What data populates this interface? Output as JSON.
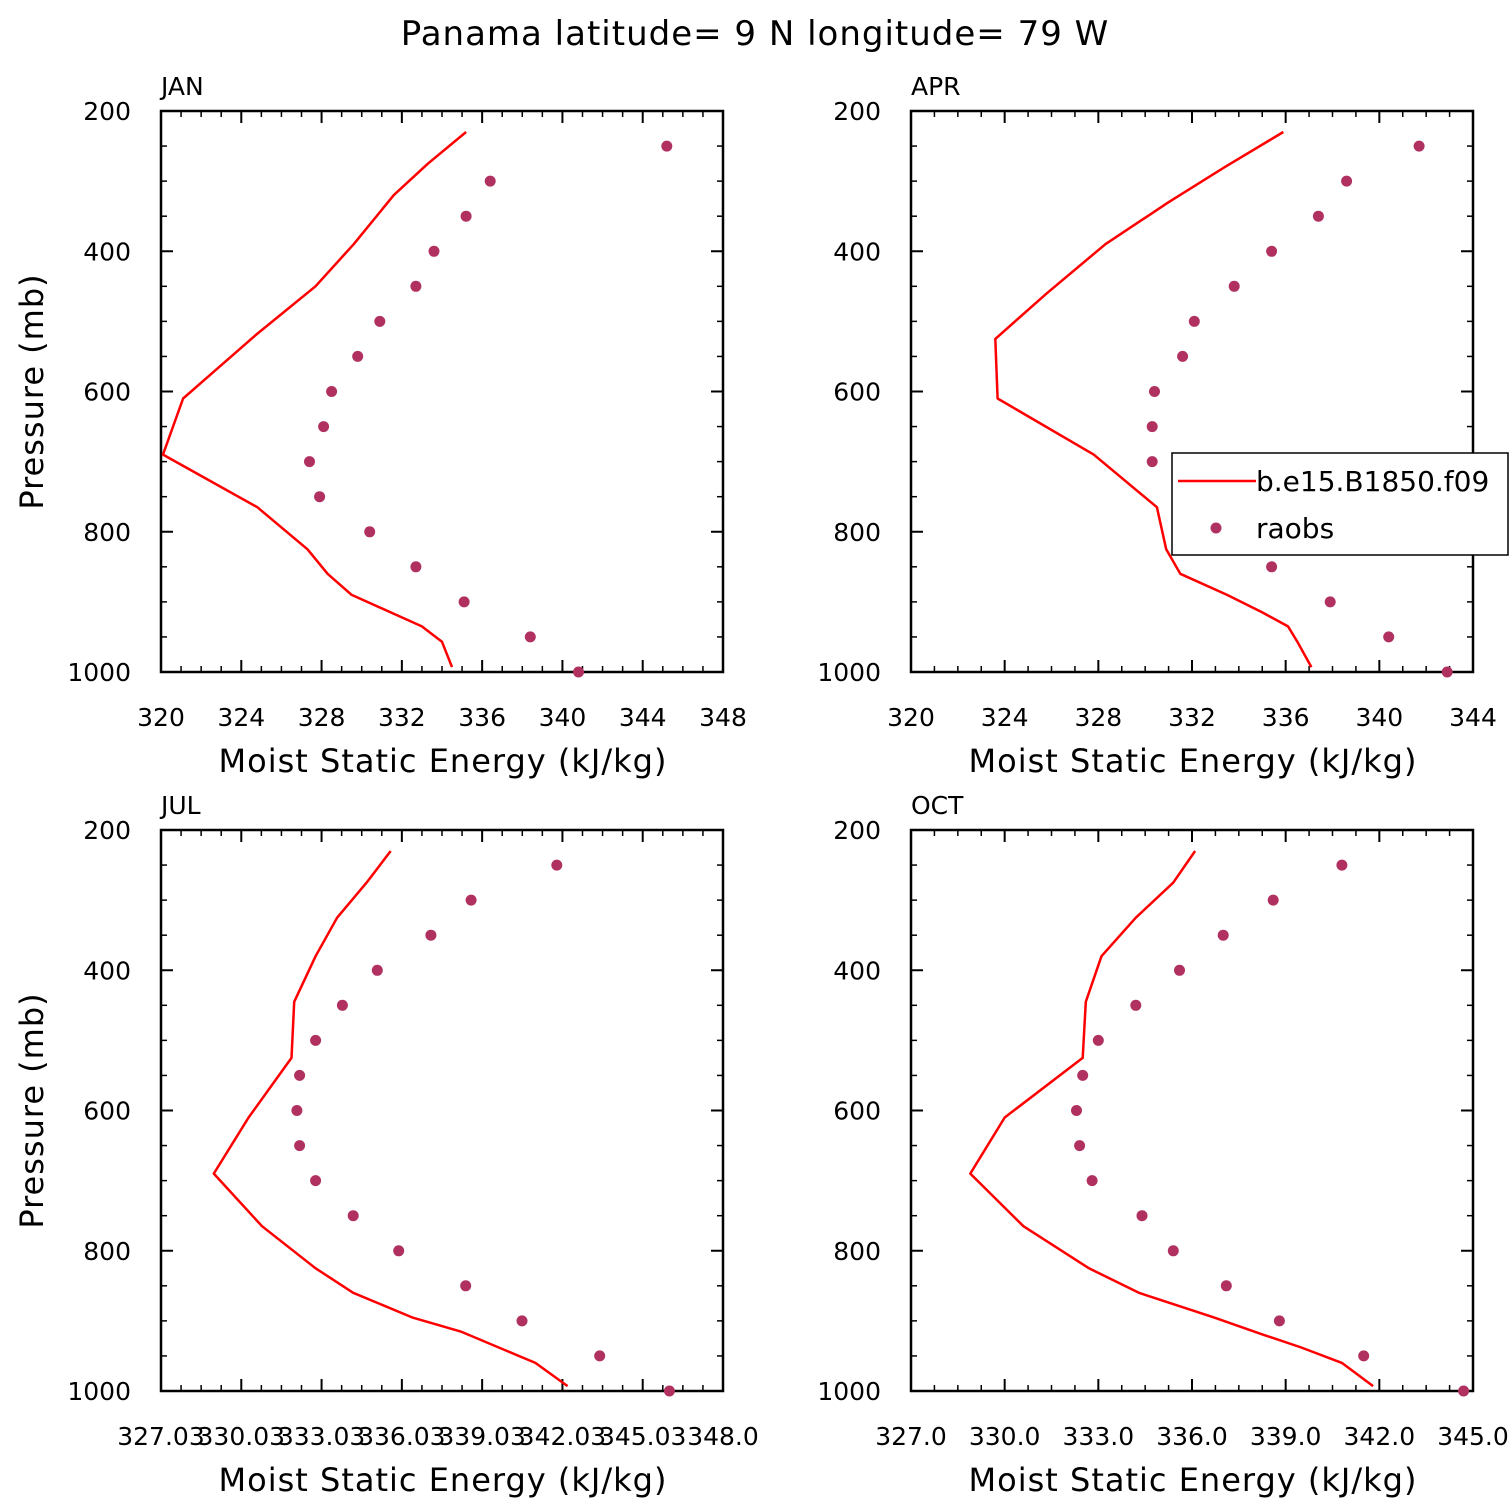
{
  "figure": {
    "title": "Panama  latitude= 9 N longitude= 79 W"
  },
  "legend": {
    "panel": 1,
    "model_label": "b.e15.B1850.f09",
    "obs_label": "raobs"
  },
  "colors": {
    "model_line": "#ff0000",
    "obs_marker": "#b03060",
    "axis": "#000000",
    "background": "#ffffff"
  },
  "chart_data": [
    {
      "type": "line",
      "panel_label": "JAN",
      "xlabel": "Moist Static Energy (kJ/kg)",
      "ylabel": "Pressure (mb)",
      "xlim": [
        320,
        348
      ],
      "xticks": [
        "320",
        "324",
        "328",
        "332",
        "336",
        "340",
        "344",
        "348"
      ],
      "ylim": [
        1000,
        200
      ],
      "yticks": [
        "200",
        "400",
        "600",
        "800",
        "1000"
      ],
      "series": [
        {
          "kind": "line",
          "pressure": [
            230,
            275,
            320,
            390,
            450,
            520,
            610,
            690,
            765,
            825,
            860,
            890,
            935,
            957,
            993
          ],
          "mse": [
            335.2,
            333.3,
            331.6,
            329.6,
            327.7,
            324.7,
            321.1,
            320.1,
            324.8,
            327.3,
            328.3,
            329.5,
            333.0,
            334.0,
            334.5
          ]
        },
        {
          "kind": "scatter",
          "pressure": [
            250,
            300,
            350,
            400,
            450,
            500,
            550,
            600,
            650,
            700,
            750,
            800,
            850,
            900,
            950,
            1000
          ],
          "mse": [
            345.2,
            336.4,
            335.2,
            333.6,
            332.7,
            330.9,
            329.8,
            328.5,
            328.1,
            327.4,
            327.9,
            330.4,
            332.7,
            335.1,
            338.4,
            340.8
          ]
        }
      ]
    },
    {
      "type": "line",
      "panel_label": "APR",
      "xlabel": "Moist Static Energy (kJ/kg)",
      "ylabel": "",
      "xlim": [
        320,
        344
      ],
      "xticks": [
        "320",
        "324",
        "328",
        "332",
        "336",
        "340",
        "344"
      ],
      "ylim": [
        1000,
        200
      ],
      "yticks": [
        "200",
        "400",
        "600",
        "800",
        "1000"
      ],
      "series": [
        {
          "kind": "line",
          "pressure": [
            230,
            280,
            330,
            390,
            460,
            525,
            610,
            690,
            765,
            825,
            860,
            890,
            915,
            935,
            957,
            993
          ],
          "mse": [
            335.9,
            333.4,
            331.0,
            328.3,
            325.8,
            323.6,
            323.7,
            327.8,
            330.5,
            330.9,
            331.5,
            333.5,
            335.0,
            336.1,
            336.5,
            337.1
          ]
        },
        {
          "kind": "scatter",
          "pressure": [
            250,
            300,
            350,
            400,
            450,
            500,
            550,
            600,
            650,
            700,
            750,
            800,
            850,
            900,
            950,
            1000
          ],
          "mse": [
            341.7,
            338.6,
            337.4,
            335.4,
            333.8,
            332.1,
            331.6,
            330.4,
            330.3,
            330.3,
            332.1,
            334.0,
            335.4,
            337.9,
            340.4,
            342.9
          ]
        }
      ]
    },
    {
      "type": "line",
      "panel_label": "JUL",
      "xlabel": "Moist Static Energy (kJ/kg)",
      "ylabel": "Pressure (mb)",
      "xlim": [
        327.03,
        348.0
      ],
      "xticks": [
        "327.03",
        "330.03",
        "333.03",
        "336.03",
        "339.03",
        "342.03",
        "345.03",
        "348.0"
      ],
      "ylim": [
        1000,
        200
      ],
      "yticks": [
        "200",
        "400",
        "600",
        "800",
        "1000"
      ],
      "series": [
        {
          "kind": "line",
          "pressure": [
            230,
            275,
            325,
            380,
            445,
            525,
            610,
            690,
            765,
            825,
            860,
            895,
            915,
            960,
            993
          ],
          "mse": [
            335.6,
            334.7,
            333.6,
            332.8,
            332.0,
            331.9,
            330.3,
            329.0,
            330.8,
            332.8,
            334.2,
            336.4,
            338.2,
            341.0,
            342.2
          ]
        },
        {
          "kind": "scatter",
          "pressure": [
            250,
            300,
            350,
            400,
            450,
            500,
            550,
            600,
            650,
            700,
            750,
            800,
            850,
            900,
            950,
            1000
          ],
          "mse": [
            341.8,
            338.6,
            337.1,
            335.1,
            333.8,
            332.8,
            332.2,
            332.1,
            332.2,
            332.8,
            334.2,
            335.9,
            338.4,
            340.5,
            343.4,
            346.0
          ]
        }
      ]
    },
    {
      "type": "line",
      "panel_label": "OCT",
      "xlabel": "Moist Static Energy (kJ/kg)",
      "ylabel": "",
      "xlim": [
        327.0,
        345.0
      ],
      "xticks": [
        "327.0",
        "330.0",
        "333.0",
        "336.0",
        "339.0",
        "342.0",
        "345.0"
      ],
      "ylim": [
        1000,
        200
      ],
      "yticks": [
        "200",
        "400",
        "600",
        "800",
        "1000"
      ],
      "series": [
        {
          "kind": "line",
          "pressure": [
            230,
            275,
            325,
            380,
            445,
            525,
            610,
            690,
            765,
            825,
            860,
            895,
            920,
            938,
            960,
            993
          ],
          "mse": [
            336.1,
            335.4,
            334.2,
            333.1,
            332.6,
            332.5,
            330.0,
            328.9,
            330.6,
            332.7,
            334.3,
            336.7,
            338.3,
            339.5,
            340.8,
            341.8
          ]
        },
        {
          "kind": "scatter",
          "pressure": [
            250,
            300,
            350,
            400,
            450,
            500,
            550,
            600,
            650,
            700,
            750,
            800,
            850,
            900,
            950,
            1000
          ],
          "mse": [
            340.8,
            338.6,
            337.0,
            335.6,
            334.2,
            333.0,
            332.5,
            332.3,
            332.4,
            332.8,
            334.4,
            335.4,
            337.1,
            338.8,
            341.5,
            344.7
          ]
        }
      ]
    }
  ]
}
